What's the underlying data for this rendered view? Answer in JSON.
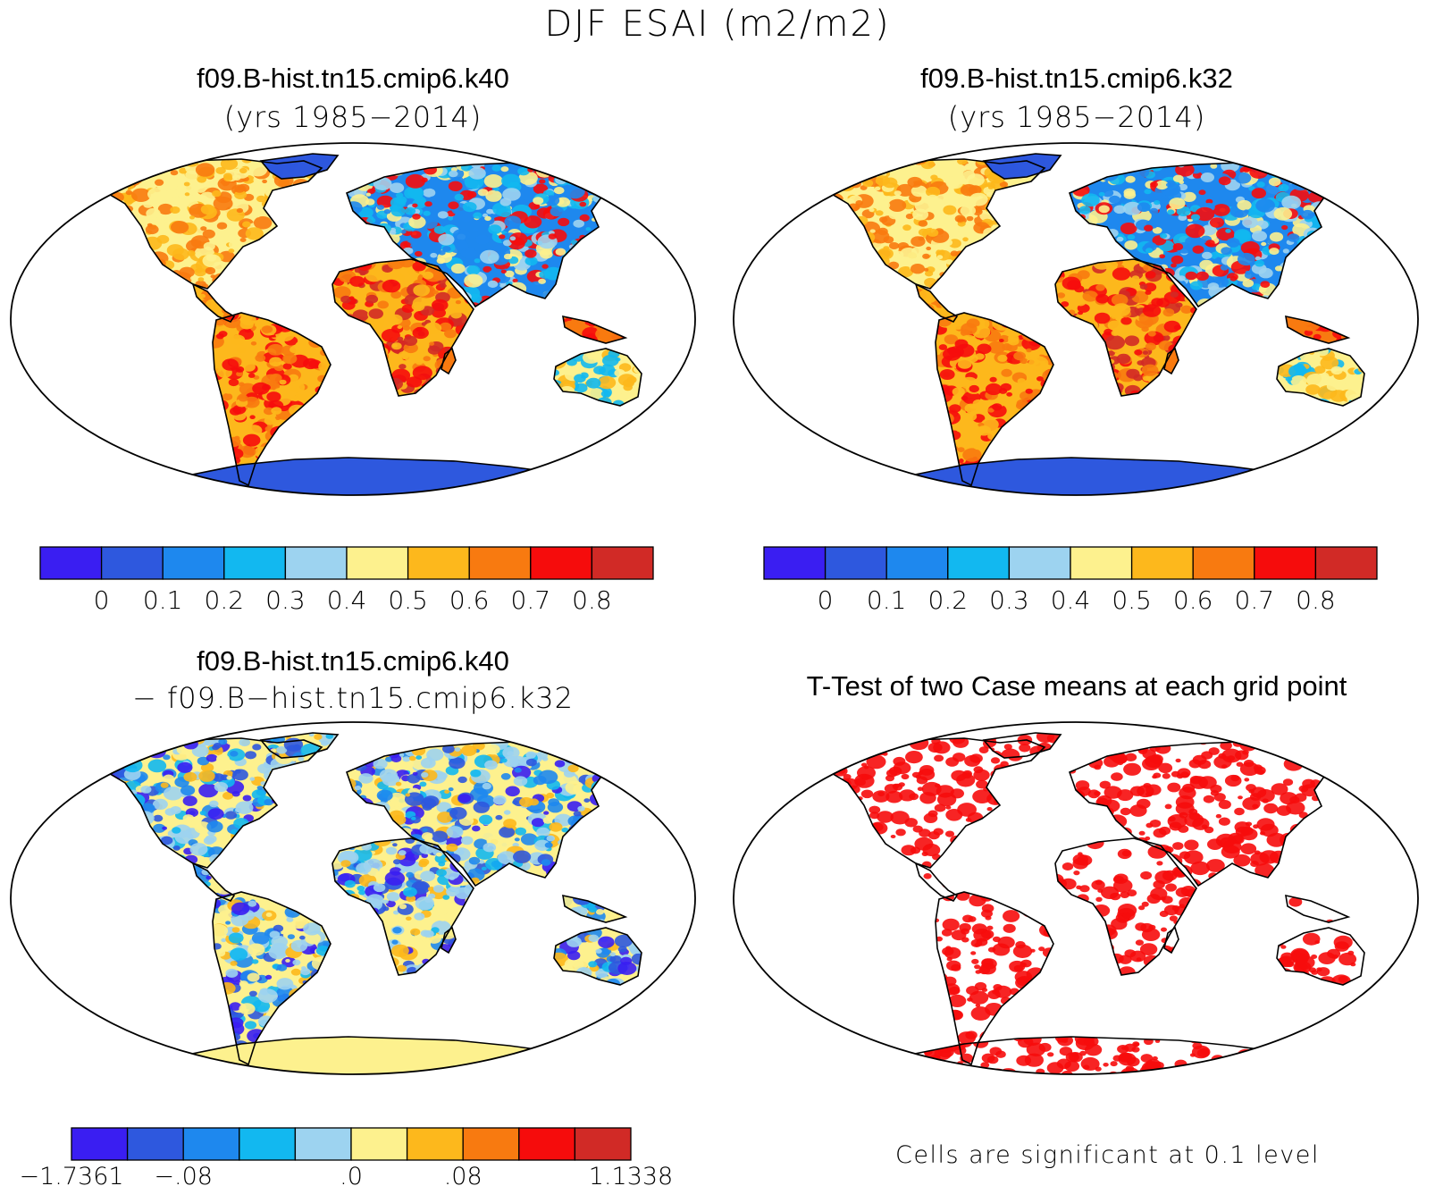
{
  "figure": {
    "title": "DJF ESAI (m2/m2)"
  },
  "panels": [
    {
      "title_line1": "f09.B-hist.tn15.cmip6.k40",
      "title_line2": "(yrs 1985−2014)",
      "field": "mean"
    },
    {
      "title_line1": "f09.B-hist.tn15.cmip6.k32",
      "title_line2": "(yrs 1985−2014)",
      "field": "mean"
    },
    {
      "title_line1": "f09.B-hist.tn15.cmip6.k40",
      "title_line2": "− f09.B−hist.tn15.cmip6.k32",
      "field": "difference"
    },
    {
      "title_line1": "T-Test of two Case means at each grid point",
      "title_line2": "",
      "field": "significance",
      "note": "Cells are significant at 0.1 level"
    }
  ],
  "colorbars": {
    "mean": {
      "colors": [
        "#3a1ef2",
        "#2e58de",
        "#1e88ee",
        "#12b8f0",
        "#9dd3f0",
        "#fdf18e",
        "#fdb81c",
        "#f87a10",
        "#f60c0c",
        "#d12a26"
      ],
      "tick_labels": [
        "0",
        "0.1",
        "0.2",
        "0.3",
        "0.4",
        "0.5",
        "0.6",
        "0.7",
        "0.8"
      ]
    },
    "diff": {
      "colors": [
        "#3a1ef2",
        "#2e58de",
        "#1e88ee",
        "#12b8f0",
        "#9dd3f0",
        "#fdf18e",
        "#fdb81c",
        "#f87a10",
        "#f60c0c",
        "#d12a26"
      ],
      "tick_labels": [
        "−1.7361",
        "−.08",
        ".0",
        ".08",
        "1.1338"
      ]
    }
  },
  "map_colors": {
    "ocean": "#ffffff",
    "antarctica_mean": "#2e58de",
    "antarctica_diff": "#fdf18e",
    "significant": "#f60c0c",
    "coastline": "#000000"
  }
}
